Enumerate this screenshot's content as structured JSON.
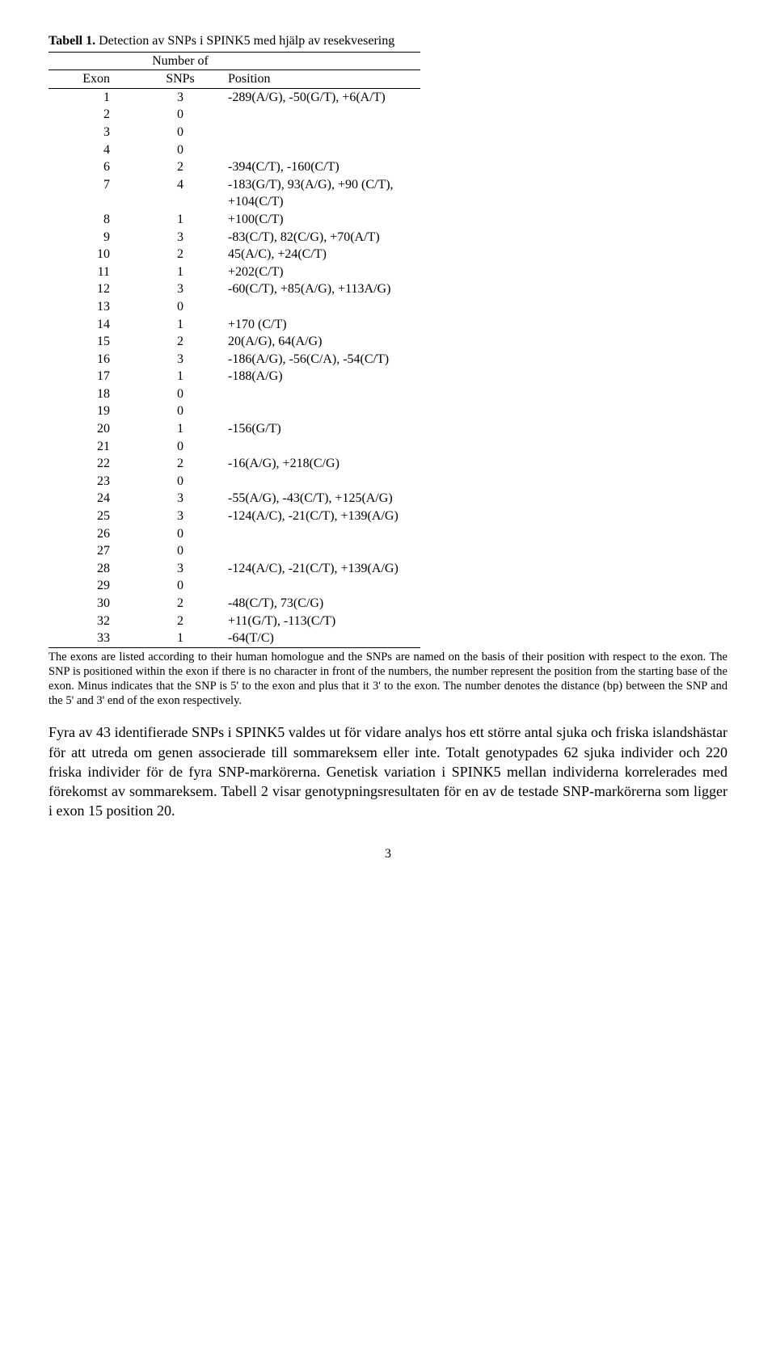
{
  "caption": {
    "label": "Tabell 1.",
    "text": " Detection av SNPs i SPINK5 med hjälp av resekvesering"
  },
  "table": {
    "headers": {
      "exon": "Exon",
      "snps_top": "Number of",
      "snps_bottom": "SNPs",
      "position": "Position"
    },
    "rows": [
      {
        "exon": "1",
        "snps": "3",
        "pos": "-289(A/G), -50(G/T), +6(A/T)"
      },
      {
        "exon": "2",
        "snps": "0",
        "pos": ""
      },
      {
        "exon": "3",
        "snps": "0",
        "pos": ""
      },
      {
        "exon": "4",
        "snps": "0",
        "pos": ""
      },
      {
        "exon": "6",
        "snps": "2",
        "pos": "-394(C/T), -160(C/T)"
      },
      {
        "exon": "7",
        "snps": "4",
        "pos": "-183(G/T), 93(A/G), +90 (C/T), +104(C/T)"
      },
      {
        "exon": "8",
        "snps": "1",
        "pos": "+100(C/T)"
      },
      {
        "exon": "9",
        "snps": "3",
        "pos": "-83(C/T), 82(C/G), +70(A/T)"
      },
      {
        "exon": "10",
        "snps": "2",
        "pos": "45(A/C), +24(C/T)"
      },
      {
        "exon": "11",
        "snps": "1",
        "pos": "+202(C/T)"
      },
      {
        "exon": "12",
        "snps": "3",
        "pos": "-60(C/T), +85(A/G), +113A/G)"
      },
      {
        "exon": "13",
        "snps": "0",
        "pos": ""
      },
      {
        "exon": "14",
        "snps": "1",
        "pos": "+170 (C/T)"
      },
      {
        "exon": "15",
        "snps": "2",
        "pos": "20(A/G), 64(A/G)"
      },
      {
        "exon": "16",
        "snps": "3",
        "pos": "-186(A/G), -56(C/A), -54(C/T)"
      },
      {
        "exon": "17",
        "snps": "1",
        "pos": "-188(A/G)"
      },
      {
        "exon": "18",
        "snps": "0",
        "pos": ""
      },
      {
        "exon": "19",
        "snps": "0",
        "pos": ""
      },
      {
        "exon": "20",
        "snps": "1",
        "pos": "-156(G/T)"
      },
      {
        "exon": "21",
        "snps": "0",
        "pos": ""
      },
      {
        "exon": "22",
        "snps": "2",
        "pos": "-16(A/G), +218(C/G)"
      },
      {
        "exon": "23",
        "snps": "0",
        "pos": ""
      },
      {
        "exon": "24",
        "snps": "3",
        "pos": "-55(A/G), -43(C/T), +125(A/G)"
      },
      {
        "exon": "25",
        "snps": "3",
        "pos": "-124(A/C), -21(C/T), +139(A/G)"
      },
      {
        "exon": "26",
        "snps": "0",
        "pos": ""
      },
      {
        "exon": "27",
        "snps": "0",
        "pos": ""
      },
      {
        "exon": "28",
        "snps": "3",
        "pos": "-124(A/C), -21(C/T), +139(A/G)"
      },
      {
        "exon": "29",
        "snps": "0",
        "pos": ""
      },
      {
        "exon": "30",
        "snps": "2",
        "pos": "-48(C/T), 73(C/G)"
      },
      {
        "exon": "32",
        "snps": "2",
        "pos": "+11(G/T), -113(C/T)"
      },
      {
        "exon": "33",
        "snps": "1",
        "pos": "-64(T/C)"
      }
    ]
  },
  "footnote": "The exons are listed according to their human homologue and the SNPs are named on the basis of their position with respect to the exon. The SNP is positioned within the exon if there is no character in front of the numbers, the number represent the position from the starting base of the exon. Minus indicates that the SNP is 5' to the exon and plus that it 3' to the exon. The number denotes the distance (bp) between the SNP and the 5' and 3' end of the exon respectively.",
  "bodytext": "Fyra av 43 identifierade SNPs i SPINK5 valdes ut för vidare analys hos ett större antal sjuka och friska islandshästar för att utreda om genen associerade till sommareksem eller inte. Totalt genotypades 62 sjuka individer och 220 friska individer för de fyra SNP-markörerna. Genetisk variation i SPINK5 mellan individerna korrelerades med förekomst av sommareksem. Tabell 2 visar genotypningsresultaten för en av de testade SNP-markörerna som ligger i exon 15 position 20.",
  "pagenum": "3"
}
